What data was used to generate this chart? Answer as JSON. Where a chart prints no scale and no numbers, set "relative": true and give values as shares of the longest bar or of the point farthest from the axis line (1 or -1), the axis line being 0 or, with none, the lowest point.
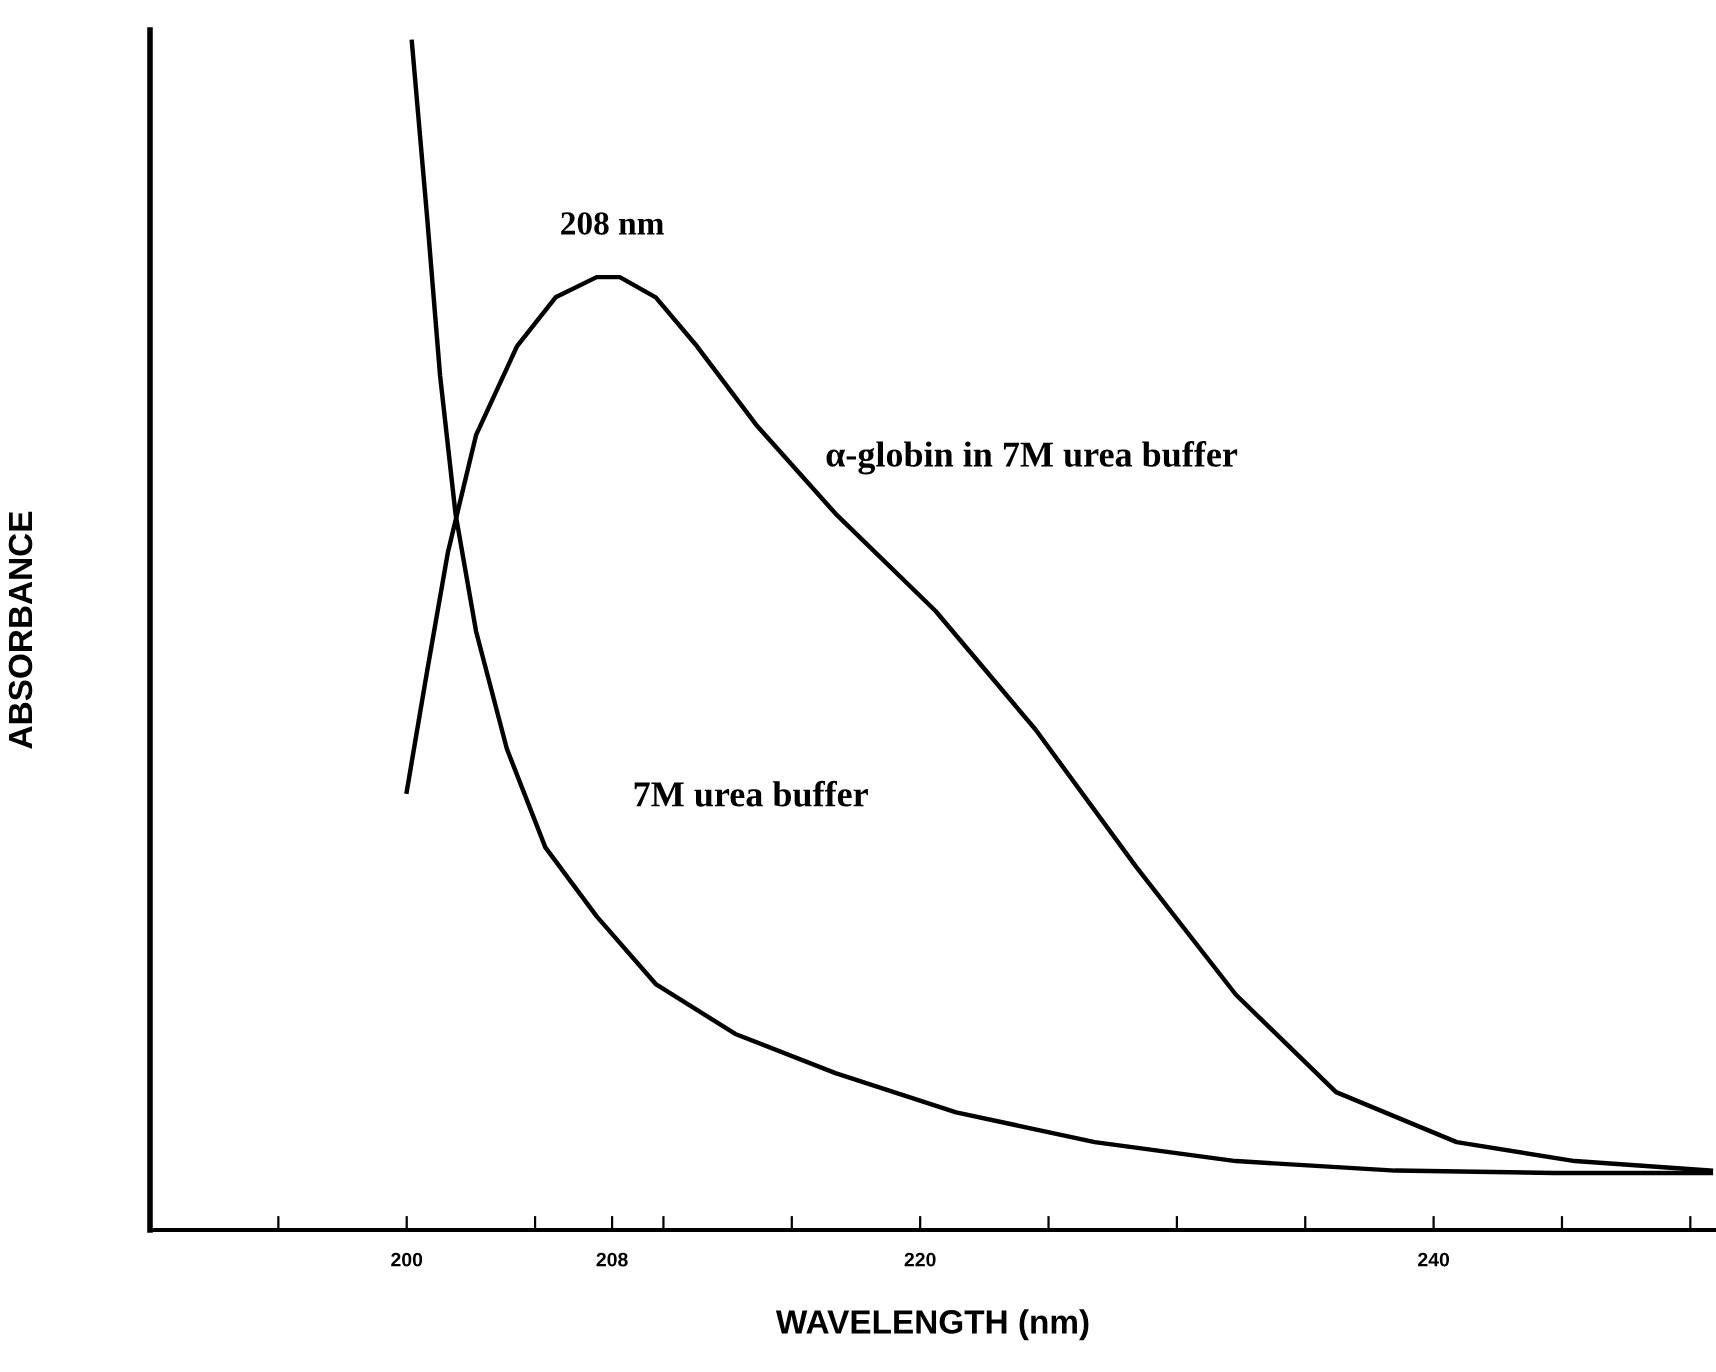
{
  "chart_data": {
    "type": "line",
    "relative": true,
    "xlabel": "WAVELENGTH (nm)",
    "ylabel": "ABSORBANCE",
    "xlim": [
      190,
      251
    ],
    "xticks": [
      {
        "value": 190,
        "label": null
      },
      {
        "value": 195,
        "label": null
      },
      200,
      {
        "value": 205,
        "label": null
      },
      208,
      {
        "value": 210,
        "label": null
      },
      {
        "value": 215,
        "label": null
      },
      220,
      {
        "value": 225,
        "label": null
      },
      {
        "value": 230,
        "label": null
      },
      {
        "value": 235,
        "label": null
      },
      240,
      {
        "value": 245,
        "label": null
      },
      {
        "value": 250,
        "label": null
      }
    ],
    "annotations": [
      {
        "text": "208 nm",
        "x": 208,
        "y": 0.802
      }
    ],
    "grid": false,
    "legend": false,
    "marker": "none",
    "line_style": "solid",
    "series": [
      {
        "name": "α-globin in 7M urea buffer",
        "color": "#000000",
        "x": [
          200,
          200.8,
          201.6,
          202.7,
          204.3,
          205.8,
          207.4,
          208.3,
          209.7,
          211.3,
          213.6,
          216.7,
          220.6,
          224.5,
          228.4,
          232.3,
          236.2,
          240.9,
          245.5,
          250.8
        ],
        "values": [
          0.369,
          0.471,
          0.57,
          0.669,
          0.744,
          0.785,
          0.802,
          0.802,
          0.785,
          0.744,
          0.678,
          0.603,
          0.521,
          0.421,
          0.306,
          0.198,
          0.116,
          0.074,
          0.058,
          0.05
        ]
      },
      {
        "name": "7M urea buffer",
        "color": "#000000",
        "x": [
          200.2,
          200.8,
          201.3,
          201.9,
          202.7,
          203.9,
          205.4,
          207.4,
          209.7,
          212.8,
          216.7,
          221.4,
          226.8,
          232.3,
          238.5,
          244.7,
          250.8
        ],
        "values": [
          1.0,
          0.851,
          0.719,
          0.603,
          0.504,
          0.405,
          0.322,
          0.264,
          0.207,
          0.165,
          0.132,
          0.099,
          0.074,
          0.058,
          0.05,
          0.048,
          0.048
        ]
      }
    ]
  }
}
